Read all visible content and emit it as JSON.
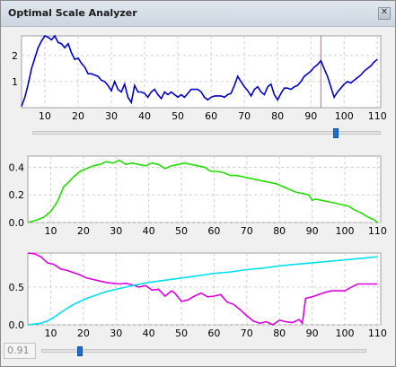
{
  "window": {
    "title": "Optimal Scale Analyzer"
  },
  "threshold": {
    "value": "0.91"
  },
  "charts": [
    {
      "type": "line",
      "xticks": [
        10,
        20,
        30,
        40,
        50,
        60,
        70,
        80,
        90,
        100,
        110
      ],
      "yticks": [
        1,
        2
      ],
      "xlim": [
        3,
        111
      ],
      "ylim": [
        0,
        2.75
      ],
      "marker_x": 93,
      "grid": true,
      "series": [
        {
          "color": "#0000cc",
          "x": [
            3,
            4,
            5,
            6,
            7,
            8,
            9,
            10,
            11,
            12,
            13,
            14,
            15,
            16,
            17,
            18,
            19,
            20,
            21,
            22,
            23,
            24,
            25,
            26,
            27,
            28,
            29,
            30,
            31,
            32,
            33,
            34,
            35,
            36,
            37,
            38,
            39,
            40,
            41,
            42,
            43,
            44,
            45,
            46,
            47,
            48,
            49,
            50,
            51,
            52,
            53,
            54,
            55,
            56,
            57,
            58,
            59,
            60,
            61,
            62,
            63,
            64,
            65,
            66,
            67,
            68,
            69,
            70,
            71,
            72,
            73,
            74,
            75,
            76,
            77,
            78,
            79,
            80,
            81,
            82,
            83,
            84,
            85,
            86,
            87,
            88,
            89,
            90,
            91,
            92,
            93,
            94,
            95,
            96,
            97,
            98,
            99,
            100,
            101,
            102,
            103,
            104,
            105,
            106,
            107,
            108,
            109,
            110
          ],
          "y": [
            0.05,
            0.4,
            0.9,
            1.5,
            1.9,
            2.3,
            2.55,
            2.75,
            2.7,
            2.6,
            2.75,
            2.5,
            2.45,
            2.3,
            2.45,
            2.1,
            1.85,
            1.9,
            1.7,
            1.55,
            1.3,
            1.3,
            1.25,
            1.2,
            1.05,
            1.0,
            0.85,
            0.65,
            1.0,
            0.7,
            0.6,
            0.9,
            0.4,
            0.2,
            0.85,
            0.6,
            0.6,
            0.55,
            0.4,
            0.6,
            0.7,
            0.5,
            0.35,
            0.6,
            0.5,
            0.6,
            0.5,
            0.4,
            0.5,
            0.4,
            0.55,
            0.7,
            0.7,
            0.7,
            0.6,
            0.4,
            0.3,
            0.4,
            0.45,
            0.45,
            0.45,
            0.4,
            0.5,
            0.55,
            0.85,
            1.2,
            1.0,
            0.8,
            0.65,
            0.45,
            0.7,
            0.8,
            0.6,
            0.5,
            0.8,
            0.9,
            0.5,
            0.3,
            0.55,
            0.75,
            0.75,
            0.7,
            0.8,
            0.85,
            1.0,
            1.2,
            1.3,
            1.4,
            1.55,
            1.65,
            1.8,
            1.5,
            1.2,
            0.8,
            0.4,
            0.6,
            0.75,
            0.9,
            1.0,
            0.95,
            1.05,
            1.15,
            1.25,
            1.4,
            1.5,
            1.6,
            1.75,
            1.85
          ]
        }
      ]
    },
    {
      "type": "line",
      "xticks": [
        10,
        20,
        30,
        40,
        50,
        60,
        70,
        80,
        90,
        100,
        110
      ],
      "yticks": [
        "0.0",
        "0.2",
        "0.4"
      ],
      "ytick_values": [
        0,
        0.2,
        0.4
      ],
      "xlim": [
        3,
        111
      ],
      "ylim": [
        0,
        0.48
      ],
      "grid": true,
      "series": [
        {
          "color": "#22dd00",
          "x": [
            3,
            6,
            8,
            10,
            12,
            14,
            15,
            17,
            19,
            21,
            23,
            25,
            27,
            29,
            31,
            33,
            35,
            37,
            39,
            41,
            43,
            45,
            47,
            49,
            51,
            53,
            55,
            57,
            59,
            61,
            63,
            65,
            67,
            69,
            71,
            73,
            75,
            77,
            79,
            81,
            83,
            85,
            87,
            89,
            90,
            91,
            93,
            95,
            97,
            99,
            101,
            103,
            105,
            107,
            109,
            110
          ],
          "y": [
            0.0,
            0.02,
            0.04,
            0.08,
            0.15,
            0.26,
            0.28,
            0.33,
            0.37,
            0.39,
            0.41,
            0.42,
            0.44,
            0.43,
            0.45,
            0.42,
            0.43,
            0.42,
            0.41,
            0.43,
            0.42,
            0.39,
            0.41,
            0.42,
            0.43,
            0.42,
            0.41,
            0.4,
            0.37,
            0.37,
            0.36,
            0.34,
            0.34,
            0.33,
            0.32,
            0.31,
            0.3,
            0.29,
            0.28,
            0.26,
            0.24,
            0.22,
            0.21,
            0.2,
            0.16,
            0.17,
            0.16,
            0.15,
            0.14,
            0.13,
            0.12,
            0.09,
            0.07,
            0.04,
            0.02,
            0.0
          ]
        }
      ]
    },
    {
      "type": "line",
      "xticks": [
        10,
        20,
        30,
        40,
        50,
        60,
        70,
        80,
        90,
        100,
        110
      ],
      "yticks": [
        "0.0",
        "0.5"
      ],
      "ytick_values": [
        0,
        0.5
      ],
      "xlim": [
        3,
        111
      ],
      "ylim": [
        0,
        0.95
      ],
      "grid": true,
      "series": [
        {
          "color": "#dd00dd",
          "x": [
            3,
            5,
            7,
            9,
            11,
            13,
            15,
            17,
            19,
            21,
            23,
            25,
            27,
            29,
            31,
            33,
            35,
            37,
            39,
            41,
            43,
            45,
            47,
            48,
            50,
            52,
            54,
            56,
            58,
            60,
            62,
            64,
            66,
            68,
            70,
            72,
            74,
            76,
            78,
            80,
            82,
            84,
            86,
            87,
            88,
            90,
            92,
            94,
            96,
            98,
            100,
            102,
            104,
            106,
            108,
            110
          ],
          "y": [
            0.95,
            0.94,
            0.9,
            0.82,
            0.8,
            0.74,
            0.72,
            0.69,
            0.66,
            0.62,
            0.6,
            0.58,
            0.56,
            0.55,
            0.54,
            0.55,
            0.53,
            0.5,
            0.52,
            0.46,
            0.47,
            0.38,
            0.45,
            0.42,
            0.31,
            0.33,
            0.38,
            0.42,
            0.37,
            0.38,
            0.4,
            0.3,
            0.27,
            0.2,
            0.12,
            0.05,
            0.02,
            0.04,
            0.0,
            0.06,
            0.04,
            0.03,
            0.07,
            0.02,
            0.35,
            0.37,
            0.4,
            0.43,
            0.45,
            0.45,
            0.45,
            0.5,
            0.54,
            0.54,
            0.54,
            0.54
          ]
        },
        {
          "color": "#00e0ee",
          "x": [
            3,
            5,
            7,
            9,
            11,
            13,
            15,
            17,
            19,
            21,
            23,
            25,
            27,
            29,
            31,
            35,
            40,
            45,
            50,
            55,
            60,
            65,
            70,
            75,
            80,
            85,
            90,
            95,
            100,
            105,
            110
          ],
          "y": [
            0.0,
            0.01,
            0.02,
            0.05,
            0.1,
            0.16,
            0.22,
            0.27,
            0.31,
            0.35,
            0.38,
            0.41,
            0.44,
            0.46,
            0.48,
            0.52,
            0.56,
            0.59,
            0.62,
            0.65,
            0.68,
            0.7,
            0.73,
            0.75,
            0.78,
            0.8,
            0.82,
            0.84,
            0.86,
            0.88,
            0.9
          ]
        }
      ]
    }
  ],
  "sliders": [
    {
      "name": "scale-slider",
      "value": 0.87
    },
    {
      "name": "threshold-slider",
      "value": 0.12
    }
  ]
}
